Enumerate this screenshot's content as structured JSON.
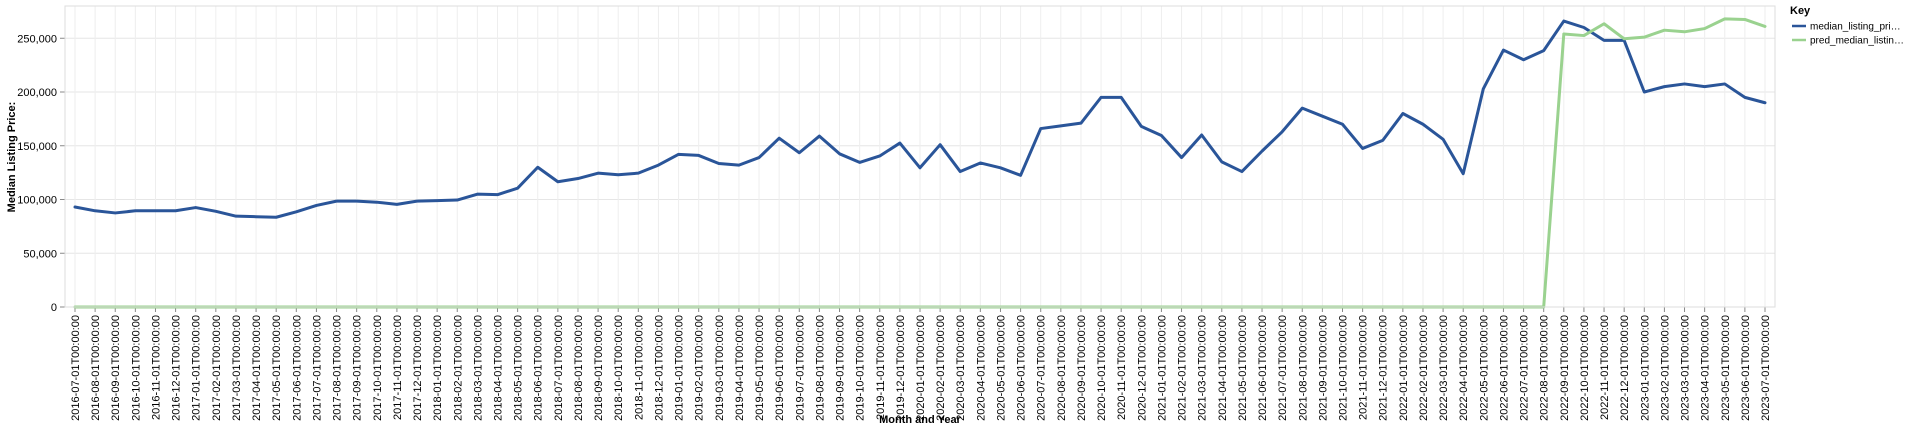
{
  "chart_data": {
    "type": "line",
    "xlabel": "Month and Year",
    "ylabel": "Median Listing Price:",
    "ylim": [
      0,
      280000
    ],
    "yticks": [
      0,
      50000,
      100000,
      150000,
      200000,
      250000
    ],
    "ytick_labels": [
      "0",
      "50,000",
      "100,000",
      "150,000",
      "200,000",
      "250,000"
    ],
    "grid": true,
    "legend": {
      "title": "Key",
      "placement": "top-right",
      "entries": [
        "median_listing_pri…",
        "pred_median_listin…"
      ]
    },
    "x": [
      "2016-07-01T00:00:00",
      "2016-08-01T00:00:00",
      "2016-09-01T00:00:00",
      "2016-10-01T00:00:00",
      "2016-11-01T00:00:00",
      "2016-12-01T00:00:00",
      "2017-01-01T00:00:00",
      "2017-02-01T00:00:00",
      "2017-03-01T00:00:00",
      "2017-04-01T00:00:00",
      "2017-05-01T00:00:00",
      "2017-06-01T00:00:00",
      "2017-07-01T00:00:00",
      "2017-08-01T00:00:00",
      "2017-09-01T00:00:00",
      "2017-10-01T00:00:00",
      "2017-11-01T00:00:00",
      "2017-12-01T00:00:00",
      "2018-01-01T00:00:00",
      "2018-02-01T00:00:00",
      "2018-03-01T00:00:00",
      "2018-04-01T00:00:00",
      "2018-05-01T00:00:00",
      "2018-06-01T00:00:00",
      "2018-07-01T00:00:00",
      "2018-08-01T00:00:00",
      "2018-09-01T00:00:00",
      "2018-10-01T00:00:00",
      "2018-11-01T00:00:00",
      "2018-12-01T00:00:00",
      "2019-01-01T00:00:00",
      "2019-02-01T00:00:00",
      "2019-03-01T00:00:00",
      "2019-04-01T00:00:00",
      "2019-05-01T00:00:00",
      "2019-06-01T00:00:00",
      "2019-07-01T00:00:00",
      "2019-08-01T00:00:00",
      "2019-09-01T00:00:00",
      "2019-10-01T00:00:00",
      "2019-11-01T00:00:00",
      "2019-12-01T00:00:00",
      "2020-01-01T00:00:00",
      "2020-02-01T00:00:00",
      "2020-03-01T00:00:00",
      "2020-04-01T00:00:00",
      "2020-05-01T00:00:00",
      "2020-06-01T00:00:00",
      "2020-07-01T00:00:00",
      "2020-08-01T00:00:00",
      "2020-09-01T00:00:00",
      "2020-10-01T00:00:00",
      "2020-11-01T00:00:00",
      "2020-12-01T00:00:00",
      "2021-01-01T00:00:00",
      "2021-02-01T00:00:00",
      "2021-03-01T00:00:00",
      "2021-04-01T00:00:00",
      "2021-05-01T00:00:00",
      "2021-06-01T00:00:00",
      "2021-07-01T00:00:00",
      "2021-08-01T00:00:00",
      "2021-09-01T00:00:00",
      "2021-10-01T00:00:00",
      "2021-11-01T00:00:00",
      "2021-12-01T00:00:00",
      "2022-01-01T00:00:00",
      "2022-02-01T00:00:00",
      "2022-03-01T00:00:00",
      "2022-04-01T00:00:00",
      "2022-05-01T00:00:00",
      "2022-06-01T00:00:00",
      "2022-07-01T00:00:00",
      "2022-08-01T00:00:00",
      "2022-09-01T00:00:00",
      "2022-10-01T00:00:00",
      "2022-11-01T00:00:00",
      "2022-12-01T00:00:00",
      "2023-01-01T00:00:00",
      "2023-02-01T00:00:00",
      "2023-03-01T00:00:00",
      "2023-04-01T00:00:00",
      "2023-05-01T00:00:00",
      "2023-06-01T00:00:00",
      "2023-07-01T00:00:00"
    ],
    "series": [
      {
        "name": "median_listing_pri…",
        "color": "#2a5599",
        "values": [
          93000,
          89500,
          87500,
          89500,
          89500,
          89500,
          92500,
          89000,
          84500,
          84000,
          83500,
          88500,
          94500,
          98500,
          98500,
          97500,
          95500,
          98500,
          99000,
          99500,
          105000,
          104500,
          110500,
          130000,
          116500,
          119500,
          124500,
          123000,
          124500,
          132000,
          142000,
          141000,
          133500,
          132000,
          139000,
          157000,
          143500,
          159000,
          142500,
          134500,
          140500,
          152500,
          129500,
          151000,
          126000,
          134000,
          129500,
          122500,
          166000,
          168500,
          171000,
          195000,
          195000,
          168000,
          159500,
          139000,
          160000,
          135000,
          126000,
          145000,
          163000,
          185000,
          177500,
          170000,
          147500,
          155000,
          180000,
          170000,
          156000,
          124000,
          203000,
          239000,
          230000,
          238500,
          266000,
          260000,
          248000,
          248000,
          200000,
          205000,
          207500,
          205000,
          207500,
          195000,
          190000
        ]
      },
      {
        "name": "pred_median_listin…",
        "color": "#9ad28f",
        "values": [
          0,
          0,
          0,
          0,
          0,
          0,
          0,
          0,
          0,
          0,
          0,
          0,
          0,
          0,
          0,
          0,
          0,
          0,
          0,
          0,
          0,
          0,
          0,
          0,
          0,
          0,
          0,
          0,
          0,
          0,
          0,
          0,
          0,
          0,
          0,
          0,
          0,
          0,
          0,
          0,
          0,
          0,
          0,
          0,
          0,
          0,
          0,
          0,
          0,
          0,
          0,
          0,
          0,
          0,
          0,
          0,
          0,
          0,
          0,
          0,
          0,
          0,
          0,
          0,
          0,
          0,
          0,
          0,
          0,
          0,
          0,
          0,
          0,
          0,
          254000,
          252500,
          263500,
          249500,
          251000,
          257500,
          256000,
          259000,
          268000,
          267500,
          261000
        ]
      }
    ]
  }
}
